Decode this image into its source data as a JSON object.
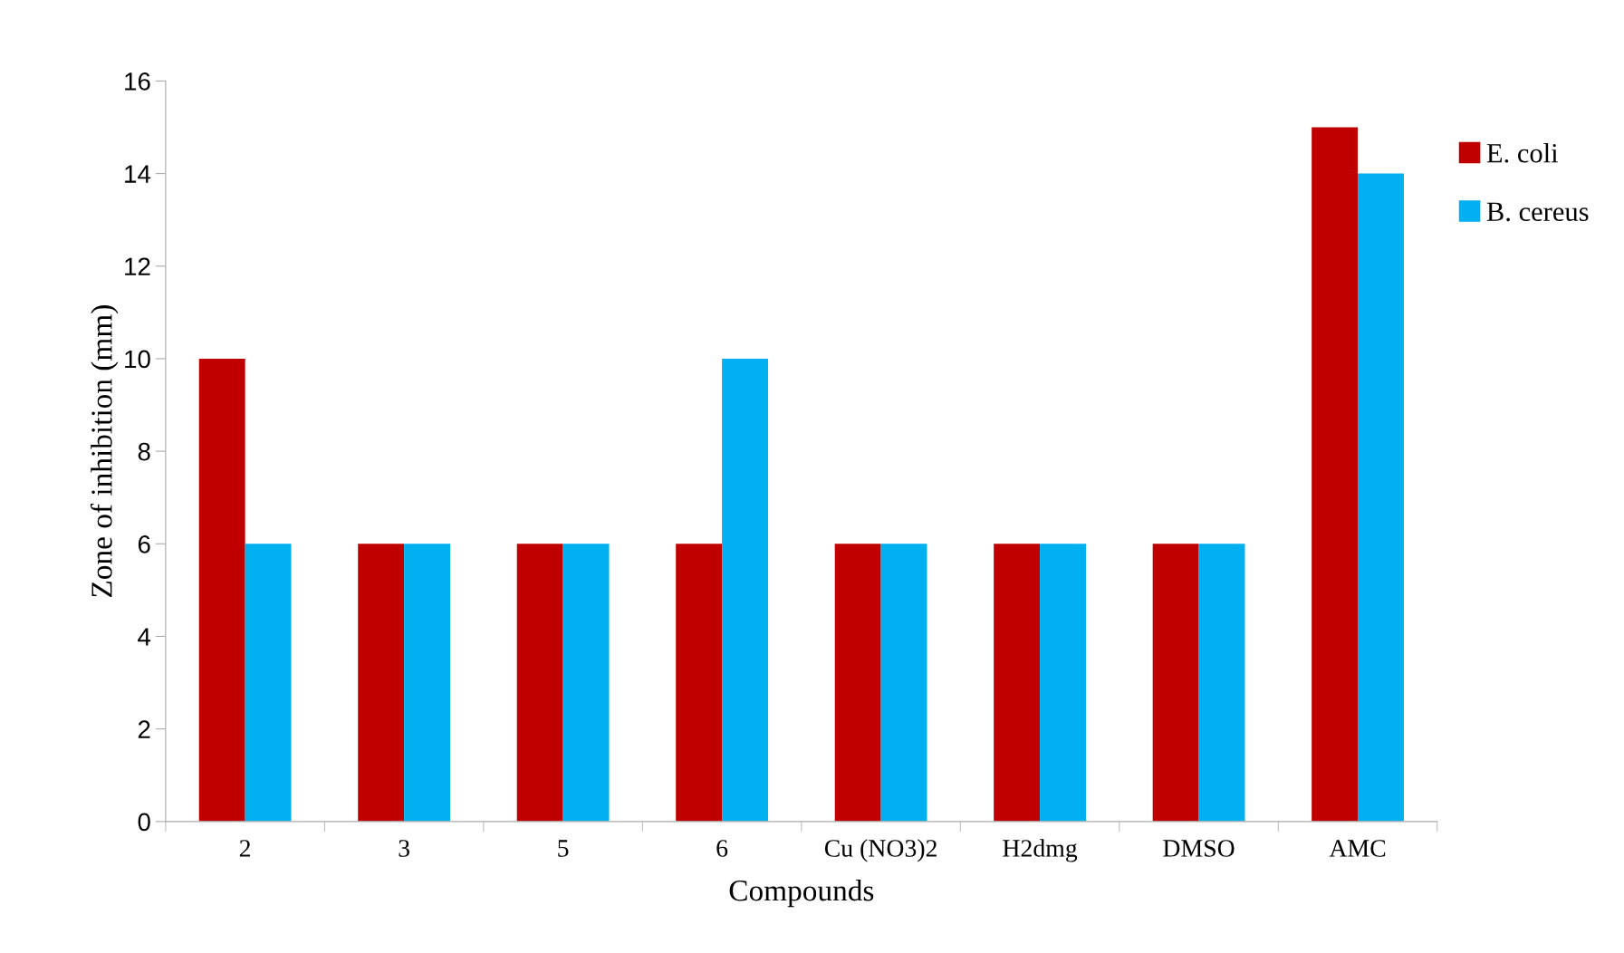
{
  "chart_data": {
    "type": "bar",
    "xlabel": "Compounds",
    "ylabel": "Zone of inhibition (mm)",
    "categories": [
      "2",
      "3",
      "5",
      "6",
      "Cu (NO3)2",
      "H2dmg",
      "DMSO",
      "AMC"
    ],
    "series": [
      {
        "name": "E. coli",
        "color": "#c00000",
        "values": [
          10,
          6,
          6,
          6,
          6,
          6,
          6,
          15
        ]
      },
      {
        "name": "B. cereus",
        "color": "#00b0f0",
        "values": [
          6,
          6,
          6,
          10,
          6,
          6,
          6,
          14
        ]
      }
    ],
    "ylim": [
      0,
      16
    ],
    "yticks": [
      0,
      2,
      4,
      6,
      8,
      10,
      12,
      14,
      16
    ],
    "grid": false,
    "legend": "right"
  }
}
